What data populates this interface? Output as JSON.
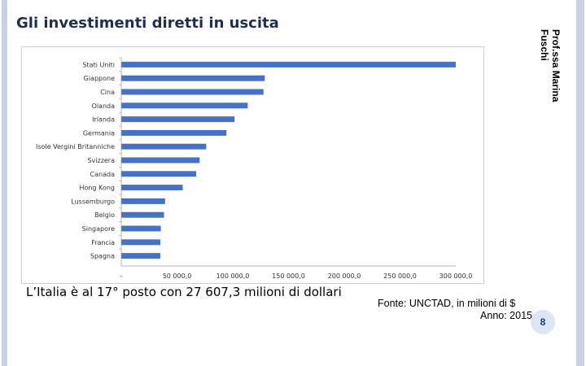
{
  "slide": {
    "title": "Gli investimenti diretti in uscita",
    "author": "Prof.ssa Marina Fuschi",
    "note": "L’Italia è al 17° posto con  27 607,3 milioni di dollari",
    "source_line1": "Fonte: UNCTAD, in milioni di $",
    "source_line2": "Anno: 2015",
    "page_number": "8",
    "colors": {
      "bar": "#4472c4",
      "title": "#1f2f4f",
      "side_bars": "#c9d3e3"
    }
  },
  "chart_data": {
    "type": "bar",
    "orientation": "horizontal",
    "categories": [
      "Stati Uniti",
      "Giappone",
      "Cina",
      "Olanda",
      "Irlanda",
      "Germania",
      "Isole Vergini Britanniche",
      "Svizzera",
      "Canada",
      "Hong Kong",
      "Lussemburgo",
      "Belgio",
      "Singapore",
      "Francia",
      "Spagna"
    ],
    "values": [
      299969,
      128654,
      127560,
      113429,
      101616,
      94313,
      76161,
      70277,
      67182,
      55143,
      39317,
      38343,
      35485,
      35071,
      35012
    ],
    "x_ticks": [
      "-",
      "50 000,0",
      "100 000,0",
      "150 000,0",
      "200 000,0",
      "250 000,0",
      "300 000,0"
    ],
    "tick_values": [
      0,
      50000,
      100000,
      150000,
      200000,
      250000,
      300000
    ],
    "xlim": [
      0,
      300000
    ],
    "grid": false,
    "legend": "none"
  }
}
